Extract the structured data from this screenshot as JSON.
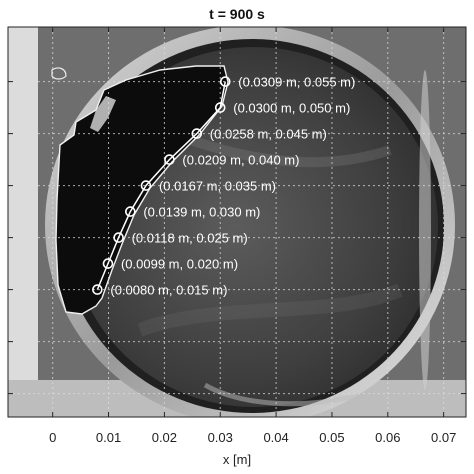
{
  "chart_data": {
    "type": "scatter",
    "title": "t = 900 s",
    "xlabel": "x [m]",
    "ylabel": "",
    "xlim": [
      -0.008,
      0.074
    ],
    "ylim": [
      -0.0095,
      0.0655
    ],
    "x_ticks": [
      0,
      0.01,
      0.02,
      0.03,
      0.04,
      0.05,
      0.06,
      0.07
    ],
    "x_tick_labels": [
      "0",
      "0.01",
      "0.02",
      "0.03",
      "0.04",
      "0.05",
      "0.06",
      "0.07"
    ],
    "y_ticks": [
      -0.005,
      0.005,
      0.015,
      0.025,
      0.035,
      0.045,
      0.055
    ],
    "grid": true,
    "background": "grayscale photograph of a circular vessel with a dark region along the left wall",
    "marker_color": "#ffffff",
    "points": [
      {
        "x": 0.0309,
        "y": 0.055,
        "label": "(0.0309 m, 0.055 m)"
      },
      {
        "x": 0.03,
        "y": 0.05,
        "label": "(0.0300 m, 0.050 m)"
      },
      {
        "x": 0.0258,
        "y": 0.045,
        "label": "(0.0258 m, 0.045 m)"
      },
      {
        "x": 0.0209,
        "y": 0.04,
        "label": "(0.0209 m, 0.040 m)"
      },
      {
        "x": 0.0167,
        "y": 0.035,
        "label": "(0.0167 m, 0.035 m)"
      },
      {
        "x": 0.0139,
        "y": 0.03,
        "label": "(0.0139 m, 0.030 m)"
      },
      {
        "x": 0.0118,
        "y": 0.025,
        "label": "(0.0118 m, 0.025 m)"
      },
      {
        "x": 0.0099,
        "y": 0.02,
        "label": "(0.0099 m, 0.020 m)"
      },
      {
        "x": 0.008,
        "y": 0.015,
        "label": "(0.0080 m, 0.015 m)"
      }
    ]
  }
}
